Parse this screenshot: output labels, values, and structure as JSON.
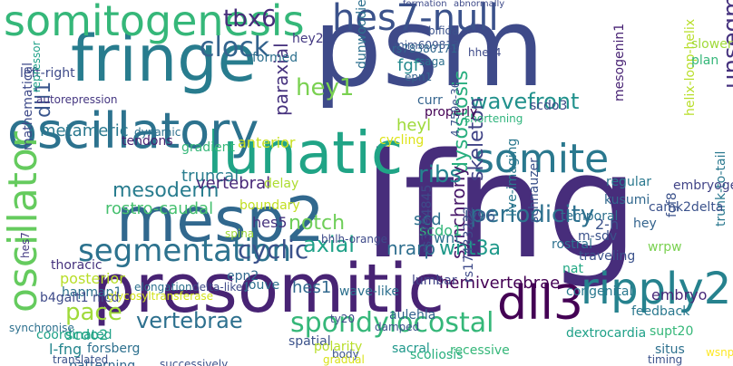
{
  "words": [
    {
      "text": "psm",
      "color": "#3e4a89"
    },
    {
      "text": "lfng",
      "color": "#472d7b"
    },
    {
      "text": "lunatic",
      "color": "#20a486"
    },
    {
      "text": "fringe",
      "color": "#287c8e"
    },
    {
      "text": "presomitic",
      "color": "#482374"
    },
    {
      "text": "mesp2",
      "color": "#31688e"
    },
    {
      "text": "oscillatory",
      "color": "#2c728e"
    },
    {
      "text": "somitogenesis",
      "color": "#35b779"
    },
    {
      "text": "hes7-null",
      "color": "#3b528b"
    },
    {
      "text": "somite",
      "color": "#2a788e"
    },
    {
      "text": "oscillator",
      "color": "#65cb5e"
    },
    {
      "text": "dll3",
      "color": "#440154"
    },
    {
      "text": "ripply2",
      "color": "#26828e"
    },
    {
      "text": "segmentation",
      "color": "#2c728e"
    },
    {
      "text": "spondylocostal",
      "color": "#35b779"
    },
    {
      "text": "unsegmented",
      "color": "#46327e"
    },
    {
      "text": "wavefront",
      "color": "#21918c"
    },
    {
      "text": "clock",
      "color": "#33638d"
    },
    {
      "text": "tbx6",
      "color": "#472d7b"
    },
    {
      "text": "mesoderm",
      "color": "#287c8e"
    },
    {
      "text": "periodicity",
      "color": "#2d708e"
    },
    {
      "text": "cyclic",
      "color": "#3b528b"
    },
    {
      "text": "dysostosis",
      "color": "#29af7f"
    },
    {
      "text": "paraxial",
      "color": "#46327e"
    },
    {
      "text": "skeleton",
      "color": "#414487"
    },
    {
      "text": "synchrony",
      "color": "#48186a"
    },
    {
      "text": "vertebrae",
      "color": "#2d708e"
    },
    {
      "text": "notch",
      "color": "#6ece58"
    },
    {
      "text": "ribs",
      "color": "#25838e"
    },
    {
      "text": "axial",
      "color": "#1fa188"
    },
    {
      "text": "hey1",
      "color": "#7ad151"
    },
    {
      "text": "wnt3a",
      "color": "#1f998a"
    },
    {
      "text": "nrarp",
      "color": "#2e6e8e"
    },
    {
      "text": "dll1",
      "color": "#39558c"
    },
    {
      "text": "pace",
      "color": "#9fda3a"
    },
    {
      "text": "embryo",
      "color": "#482878"
    },
    {
      "text": "hemivertebrae",
      "color": "#440154"
    },
    {
      "text": "metameric",
      "color": "#2a788e"
    },
    {
      "text": "mathematical",
      "color": "#3e4a89"
    },
    {
      "text": "truncal",
      "color": "#287c8e"
    },
    {
      "text": "scdo2",
      "color": "#22a884"
    },
    {
      "text": "sacral",
      "color": "#1f988b"
    },
    {
      "text": "hes1",
      "color": "#31688e"
    },
    {
      "text": "fgf",
      "color": "#23898e"
    },
    {
      "text": "thoracic",
      "color": "#46327e"
    },
    {
      "text": "posterior",
      "color": "#b8de29"
    },
    {
      "text": "scd",
      "color": "#2d708e"
    },
    {
      "text": "wnt",
      "color": "#2c728e"
    },
    {
      "text": "rostro-caudal",
      "color": "#46c06f"
    },
    {
      "text": "vertebral",
      "color": "#482878"
    },
    {
      "text": "scdo1",
      "color": "#32b67a"
    },
    {
      "text": "mesogenin1",
      "color": "#482374"
    },
    {
      "text": "hes5",
      "color": "#46327e"
    },
    {
      "text": "autorepression",
      "color": "#453781"
    },
    {
      "text": "feedback",
      "color": "#2a788e"
    },
    {
      "text": "2-h",
      "color": "#3b528b"
    },
    {
      "text": "hey2",
      "color": "#443a83"
    },
    {
      "text": "heyl",
      "color": "#9fda3a"
    },
    {
      "text": "gradient",
      "color": "#35b779"
    },
    {
      "text": "anterior",
      "color": "#c8e020"
    },
    {
      "text": "delay",
      "color": "#addc30"
    },
    {
      "text": "shortening",
      "color": "#2fb47c"
    },
    {
      "text": "hapmap1",
      "color": "#2d708e"
    },
    {
      "text": "mim609813",
      "color": "#3b528b"
    },
    {
      "text": "ly96",
      "color": "#38598c"
    },
    {
      "text": "dynamic",
      "color": "#2d708e"
    },
    {
      "text": "tendons",
      "color": "#481f70"
    },
    {
      "text": "scdo3",
      "color": "#3e4a89"
    },
    {
      "text": "spatial",
      "color": "#3b528b"
    },
    {
      "text": "polarity",
      "color": "#b8de29"
    },
    {
      "text": "coordinated",
      "color": "#1fa188"
    },
    {
      "text": "l-fng",
      "color": "#24868e"
    },
    {
      "text": "forsberg",
      "color": "#2d708e"
    },
    {
      "text": "boundary",
      "color": "#c2df23"
    },
    {
      "text": "bhlh-orange",
      "color": "#3e4a89"
    },
    {
      "text": "epn2",
      "color": "#31688e"
    },
    {
      "text": "regular",
      "color": "#2a788e"
    },
    {
      "text": "temporal",
      "color": "#2d708e"
    },
    {
      "text": "wrpw",
      "color": "#7ad151"
    },
    {
      "text": "nat",
      "color": "#22a884"
    },
    {
      "text": "elongation",
      "color": "#2d708e"
    },
    {
      "text": "delta-like1",
      "color": "#3e4a89"
    },
    {
      "text": "glycosyltransferase",
      "color": "#d2e21b"
    },
    {
      "text": "wave-like",
      "color": "#2d708e"
    },
    {
      "text": "aulehla",
      "color": "#33638d"
    },
    {
      "text": "damped",
      "color": "#3b528b"
    },
    {
      "text": "body",
      "color": "#3b528b"
    },
    {
      "text": "traveling",
      "color": "#3b528b"
    },
    {
      "text": "congenital",
      "color": "#2a788e"
    },
    {
      "text": "rostral",
      "color": "#2d708e"
    },
    {
      "text": "dextrocardia",
      "color": "#1fa188"
    },
    {
      "text": "situs",
      "color": "#2d708e"
    },
    {
      "text": "ty20",
      "color": "#3e4a89"
    },
    {
      "text": "recessive",
      "color": "#35b779"
    },
    {
      "text": "scoliosis",
      "color": "#29af7f"
    },
    {
      "text": "patterning",
      "color": "#31688e"
    },
    {
      "text": "trunk-to-tail",
      "color": "#2a788e"
    },
    {
      "text": "embryogenesis",
      "color": "#414487"
    },
    {
      "text": "camk2delta",
      "color": "#3b528b"
    },
    {
      "text": "fgf8",
      "color": "#3b528b"
    },
    {
      "text": "kusumi",
      "color": "#31688e"
    },
    {
      "text": "supt20",
      "color": "#35b779"
    },
    {
      "text": "lumbar",
      "color": "#414487"
    },
    {
      "text": "jouve",
      "color": "#2d708e"
    },
    {
      "text": "epn1",
      "color": "#33638d"
    },
    {
      "text": "curr",
      "color": "#33638d"
    },
    {
      "text": "properly",
      "color": "#440154"
    },
    {
      "text": "cycling",
      "color": "#dde318"
    },
    {
      "text": "formed",
      "color": "#2d708e"
    },
    {
      "text": "dunwoodie",
      "color": "#2d708e"
    },
    {
      "text": "rs78380171",
      "color": "#31688e"
    },
    {
      "text": "hhes4",
      "color": "#3e4a89"
    },
    {
      "text": "rs17433222",
      "color": "#3e4a89"
    },
    {
      "text": "rs3794845",
      "color": "#3e4a89"
    },
    {
      "text": "4.759e-36",
      "color": "#3b528b"
    },
    {
      "text": "hes7",
      "color": "#443a83"
    },
    {
      "text": "helix-loop-helix",
      "color": "#b8de29"
    },
    {
      "text": "left-right",
      "color": "#3e4a89"
    },
    {
      "text": "repressor",
      "color": "#1fa188"
    },
    {
      "text": "slower",
      "color": "#a0da39"
    },
    {
      "text": "plan",
      "color": "#35b779"
    },
    {
      "text": "saga",
      "color": "#2d708e"
    },
    {
      "text": "bifida",
      "color": "#3b528b"
    },
    {
      "text": "b4galt1 nicd",
      "color": "#3e4a89"
    },
    {
      "text": "synchronise",
      "color": "#2d708e"
    },
    {
      "text": "translated",
      "color": "#3b528b"
    },
    {
      "text": "live-imaging",
      "color": "#2a788e"
    },
    {
      "text": "schnauzer",
      "color": "#3b528b"
    },
    {
      "text": "m-sdv",
      "color": "#3b528b"
    },
    {
      "text": "timing",
      "color": "#3b528b"
    },
    {
      "text": "wsnp",
      "color": "#fde725"
    },
    {
      "text": "hey",
      "color": "#33638d"
    },
    {
      "text": "spina",
      "color": "#9fda3a"
    },
    {
      "text": "successively",
      "color": "#3b528b"
    },
    {
      "text": "abnormally",
      "color": "#3e4a89"
    },
    {
      "text": "formation",
      "color": "#3e4a89"
    },
    {
      "text": "gradual",
      "color": "#d8e219"
    }
  ]
}
